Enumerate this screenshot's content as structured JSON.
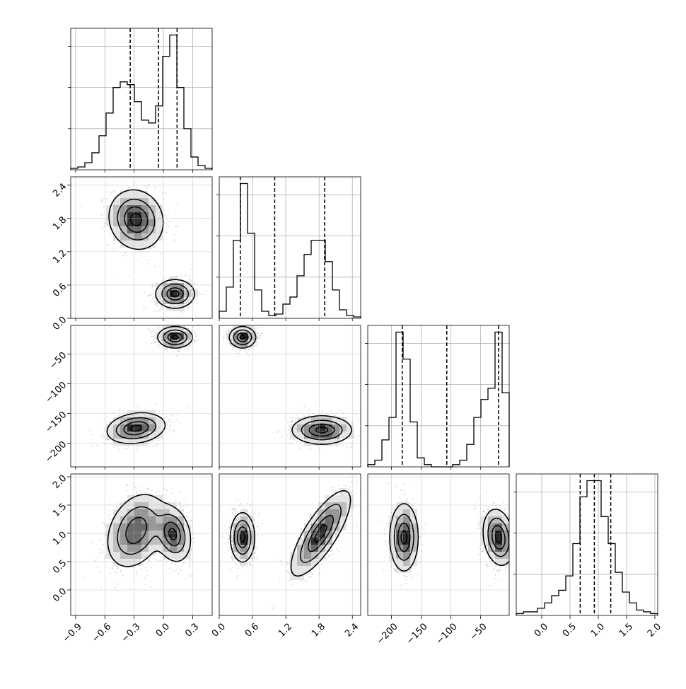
{
  "chart_data": {
    "type": "corner",
    "grid": true,
    "parameters": [
      {
        "lim": [
          -0.95,
          0.5
        ],
        "ticks": [
          -0.9,
          -0.6,
          -0.3,
          0.0,
          0.3
        ],
        "tick_labels": [
          "−0.9",
          "−0.6",
          "−0.3",
          "0.0",
          "0.3"
        ]
      },
      {
        "lim": [
          0.0,
          2.55
        ],
        "ticks": [
          0.0,
          0.6,
          1.2,
          1.8,
          2.4
        ],
        "tick_labels": [
          "0.0",
          "0.6",
          "1.2",
          "1.8",
          "2.4"
        ]
      },
      {
        "lim": [
          -240,
          -2
        ],
        "ticks": [
          -200,
          -150,
          -100,
          -50
        ],
        "tick_labels": [
          "−200",
          "−150",
          "−100",
          "−50"
        ]
      },
      {
        "lim": [
          -0.45,
          2.05
        ],
        "ticks": [
          0.0,
          0.5,
          1.0,
          1.5,
          2.0
        ],
        "tick_labels": [
          "0.0",
          "0.5",
          "1.0",
          "1.5",
          "2.0"
        ]
      }
    ],
    "histograms": [
      {
        "param": 0,
        "bin_start": -0.95,
        "bin_width": 0.0725,
        "counts": [
          0.01,
          0.02,
          0.05,
          0.12,
          0.24,
          0.4,
          0.58,
          0.62,
          0.6,
          0.48,
          0.35,
          0.33,
          0.45,
          0.8,
          0.95,
          0.58,
          0.29,
          0.09,
          0.03,
          0.01
        ],
        "quantiles": [
          -0.34,
          -0.05,
          0.14
        ]
      },
      {
        "param": 1,
        "bin_start": 0.0,
        "bin_width": 0.1275,
        "counts": [
          0.05,
          0.22,
          0.55,
          0.95,
          0.6,
          0.2,
          0.05,
          0.02,
          0.03,
          0.1,
          0.15,
          0.3,
          0.45,
          0.55,
          0.55,
          0.4,
          0.2,
          0.06,
          0.02,
          0.01
        ],
        "quantiles": [
          0.38,
          1.0,
          1.9
        ]
      },
      {
        "param": 2,
        "bin_start": -240,
        "bin_width": 11.9,
        "counts": [
          0.01,
          0.03,
          0.12,
          0.22,
          0.6,
          0.48,
          0.2,
          0.04,
          0.01,
          0.0,
          0.0,
          0.0,
          0.01,
          0.03,
          0.1,
          0.22,
          0.3,
          0.35,
          0.6,
          0.33
        ],
        "quantiles": [
          -182,
          -107,
          -20
        ]
      },
      {
        "param": 3,
        "bin_start": -0.45,
        "bin_width": 0.125,
        "counts": [
          0.01,
          0.02,
          0.02,
          0.04,
          0.07,
          0.11,
          0.14,
          0.22,
          0.4,
          0.66,
          0.75,
          0.75,
          0.55,
          0.4,
          0.24,
          0.13,
          0.07,
          0.03,
          0.02,
          0.01
        ],
        "quantiles": [
          0.68,
          0.93,
          1.22
        ]
      }
    ],
    "pairs": [
      {
        "x": 0,
        "y": 1,
        "clusters": [
          {
            "cx": -0.28,
            "cy": 1.78,
            "sx": 0.14,
            "sy": 0.27,
            "rho": -0.1,
            "weight": 0.5,
            "n": 850
          },
          {
            "cx": 0.12,
            "cy": 0.44,
            "sx": 0.1,
            "sy": 0.13,
            "rho": 0.0,
            "weight": 0.5,
            "n": 850
          }
        ]
      },
      {
        "x": 0,
        "y": 2,
        "clusters": [
          {
            "cx": -0.28,
            "cy": -175,
            "sx": 0.15,
            "sy": 13,
            "rho": 0.2,
            "weight": 0.5,
            "n": 850
          },
          {
            "cx": 0.12,
            "cy": -22,
            "sx": 0.09,
            "sy": 9,
            "rho": 0.0,
            "weight": 0.5,
            "n": 700
          }
        ]
      },
      {
        "x": 0,
        "y": 3,
        "clusters": [
          {
            "cx": -0.28,
            "cy": 1.05,
            "sx": 0.15,
            "sy": 0.33,
            "rho": 0.3,
            "weight": 0.5,
            "n": 850
          },
          {
            "cx": 0.1,
            "cy": 0.98,
            "sx": 0.09,
            "sy": 0.24,
            "rho": -0.2,
            "weight": 0.55,
            "n": 850
          }
        ]
      },
      {
        "x": 1,
        "y": 2,
        "clusters": [
          {
            "cx": 0.42,
            "cy": -22,
            "sx": 0.12,
            "sy": 9,
            "rho": 0.0,
            "weight": 0.5,
            "n": 700
          },
          {
            "cx": 1.85,
            "cy": -178,
            "sx": 0.27,
            "sy": 12,
            "rho": 0.0,
            "weight": 0.5,
            "n": 850
          }
        ]
      },
      {
        "x": 1,
        "y": 3,
        "clusters": [
          {
            "cx": 0.42,
            "cy": 0.93,
            "sx": 0.11,
            "sy": 0.22,
            "rho": 0.0,
            "weight": 0.5,
            "n": 850
          },
          {
            "cx": 1.83,
            "cy": 1.0,
            "sx": 0.27,
            "sy": 0.38,
            "rho": 0.78,
            "weight": 0.5,
            "n": 850
          }
        ]
      },
      {
        "x": 2,
        "y": 3,
        "clusters": [
          {
            "cx": -179,
            "cy": 0.93,
            "sx": 12,
            "sy": 0.3,
            "rho": 0.0,
            "weight": 0.5,
            "n": 850
          },
          {
            "cx": -20,
            "cy": 0.93,
            "sx": 13,
            "sy": 0.25,
            "rho": -0.2,
            "weight": 0.5,
            "n": 850
          }
        ]
      }
    ]
  }
}
